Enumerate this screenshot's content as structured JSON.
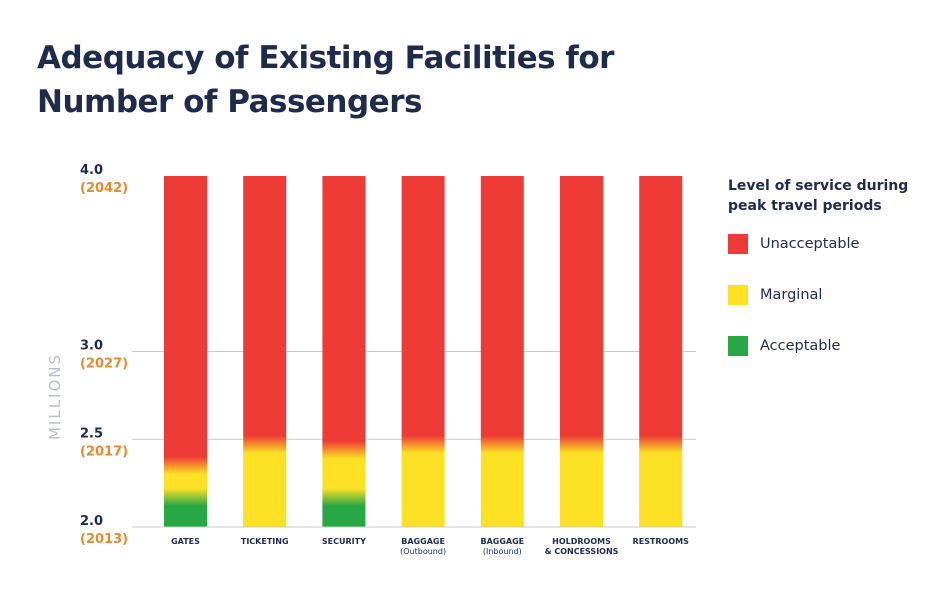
{
  "title": "Adequacy of Existing Facilities for Number of Passengers",
  "colors": {
    "unacceptable": "#ef3b36",
    "marginal": "#fde125",
    "acceptable": "#28a745",
    "year": "#e8892b",
    "value": "#1f2b4a",
    "axis_title": "#b9bec8"
  },
  "chart_data": {
    "type": "bar",
    "title": "Adequacy of Existing Facilities for Number of Passengers",
    "ylabel": "MILLIONS",
    "ylim": [
      2.0,
      4.0
    ],
    "yticks": [
      {
        "value": 2.0,
        "label": "2.0",
        "year": "(2013)"
      },
      {
        "value": 2.5,
        "label": "2.5",
        "year": "(2017)"
      },
      {
        "value": 3.0,
        "label": "3.0",
        "year": "(2027)"
      },
      {
        "value": 4.0,
        "label": "4.0",
        "year": "(2042)"
      }
    ],
    "categories": [
      {
        "name": "GATES",
        "sub": "",
        "acceptable_to": 2.17,
        "marginal_to": 2.35
      },
      {
        "name": "TICKETING",
        "sub": "",
        "acceptable_to": 2.0,
        "marginal_to": 2.47
      },
      {
        "name": "SECURITY",
        "sub": "",
        "acceptable_to": 2.17,
        "marginal_to": 2.44
      },
      {
        "name": "BAGGAGE",
        "sub": "(Outbound)",
        "acceptable_to": 2.0,
        "marginal_to": 2.47
      },
      {
        "name": "BAGGAGE",
        "sub": "(Inbound)",
        "acceptable_to": 2.0,
        "marginal_to": 2.47
      },
      {
        "name": "HOLDROOMS",
        "sub": "& CONCESSIONS",
        "acceptable_to": 2.0,
        "marginal_to": 2.47
      },
      {
        "name": "RESTROOMS",
        "sub": "",
        "acceptable_to": 2.0,
        "marginal_to": 2.47
      }
    ],
    "legend": {
      "title": "Level of service during peak travel periods",
      "items": [
        {
          "label": "Unacceptable",
          "color_key": "unacceptable"
        },
        {
          "label": "Marginal",
          "color_key": "marginal"
        },
        {
          "label": "Acceptable",
          "color_key": "acceptable"
        }
      ]
    }
  }
}
